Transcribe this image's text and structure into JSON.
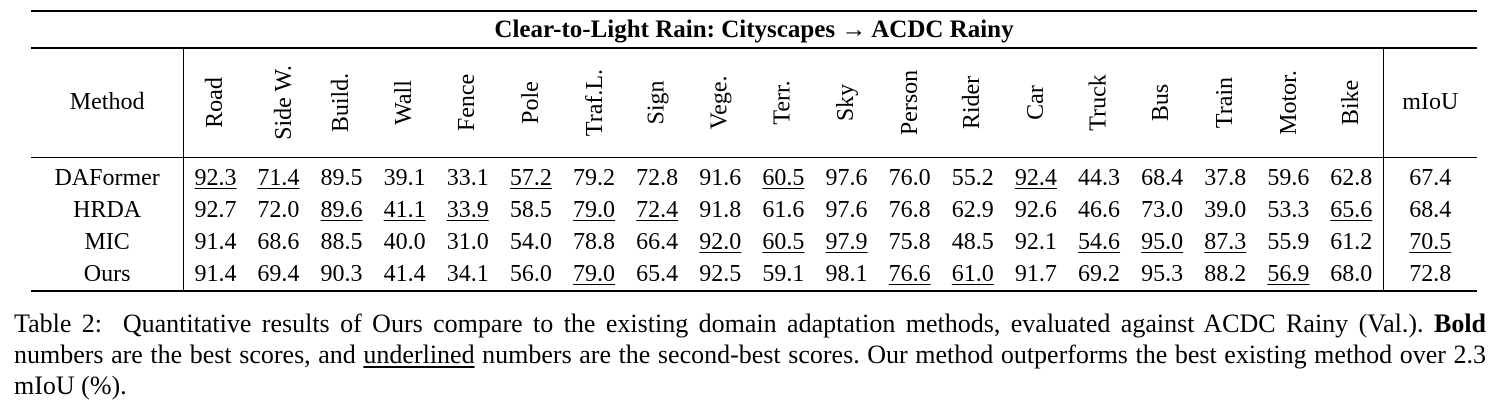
{
  "table": {
    "title": "Clear-to-Light Rain: Cityscapes → ACDC Rainy",
    "method_header": "Method",
    "class_headers": [
      "Road",
      "Side W.",
      "Build.",
      "Wall",
      "Fence",
      "Pole",
      "Traf.L.",
      "Sign",
      "Vege.",
      "Terr.",
      "Sky",
      "Person",
      "Rider",
      "Car",
      "Truck",
      "Bus",
      "Train",
      "Motor.",
      "Bike"
    ],
    "miou_header": "mIoU",
    "rows": [
      {
        "method": "DAFormer",
        "values": [
          "92.3",
          "71.4",
          "89.5",
          "39.1",
          "33.1",
          "57.2",
          "79.2",
          "72.8",
          "91.6",
          "60.5",
          "97.6",
          "76.0",
          "55.2",
          "92.4",
          "44.3",
          "68.4",
          "37.8",
          "59.6",
          "62.8"
        ],
        "styles": [
          "u",
          "u",
          "",
          "",
          "",
          "u",
          "b",
          "b",
          "",
          "u",
          "",
          "",
          "",
          "u",
          "",
          "",
          "",
          "b",
          ""
        ],
        "miou": "67.4",
        "miou_style": ""
      },
      {
        "method": "HRDA",
        "values": [
          "92.7",
          "72.0",
          "89.6",
          "41.1",
          "33.9",
          "58.5",
          "79.0",
          "72.4",
          "91.8",
          "61.6",
          "97.6",
          "76.8",
          "62.9",
          "92.6",
          "46.6",
          "73.0",
          "39.0",
          "53.3",
          "65.6"
        ],
        "styles": [
          "b",
          "b",
          "u",
          "u",
          "u",
          "b",
          "u",
          "u",
          "",
          "b",
          "",
          "b",
          "b",
          "b",
          "",
          "",
          "",
          "",
          "u"
        ],
        "miou": "68.4",
        "miou_style": ""
      },
      {
        "method": "MIC",
        "values": [
          "91.4",
          "68.6",
          "88.5",
          "40.0",
          "31.0",
          "54.0",
          "78.8",
          "66.4",
          "92.0",
          "60.5",
          "97.9",
          "75.8",
          "48.5",
          "92.1",
          "54.6",
          "95.0",
          "87.3",
          "55.9",
          "61.2"
        ],
        "styles": [
          "",
          "",
          "",
          "",
          "",
          "",
          "",
          "",
          "u",
          "u",
          "u",
          "",
          "",
          "",
          "u",
          "u",
          "u",
          "",
          ""
        ],
        "miou": "70.5",
        "miou_style": "u"
      },
      {
        "method": "Ours",
        "values": [
          "91.4",
          "69.4",
          "90.3",
          "41.4",
          "34.1",
          "56.0",
          "79.0",
          "65.4",
          "92.5",
          "59.1",
          "98.1",
          "76.6",
          "61.0",
          "91.7",
          "69.2",
          "95.3",
          "88.2",
          "56.9",
          "68.0"
        ],
        "styles": [
          "",
          "",
          "b",
          "b",
          "b",
          "",
          "u",
          "",
          "b",
          "",
          "b",
          "u",
          "u",
          "",
          "b",
          "b",
          "b",
          "u",
          "b"
        ],
        "miou": "72.8",
        "miou_style": "b"
      }
    ]
  },
  "caption": {
    "label": "Table 2:",
    "text_1": "Quantitative results of Ours compare to the existing domain adaptation methods, evaluated against ACDC Rainy (Val.).",
    "bold_word": "Bold",
    "text_2": "numbers are the best scores, and",
    "underlined_word": "underlined",
    "text_3": "numbers are the second-best scores. Our method outperforms the best existing method over 2.3 mIoU (%)."
  }
}
